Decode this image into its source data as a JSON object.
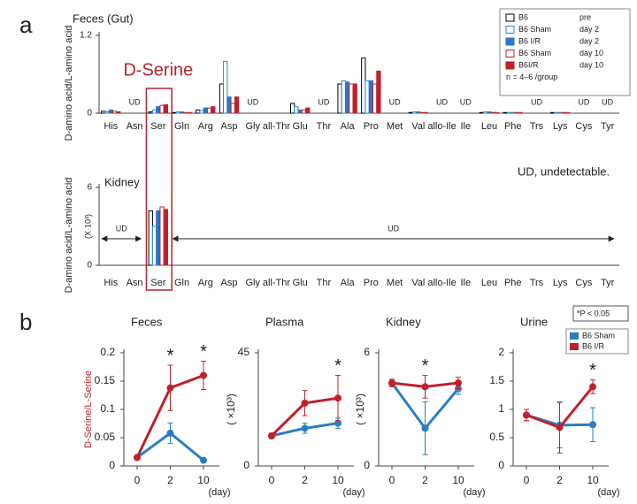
{
  "panel_labels": [
    "a",
    "b"
  ],
  "chart_data": [
    {
      "type": "grouped-bar",
      "title": "Feces (Gut)",
      "ylabel": "D-amino acid/L-amino acid",
      "categories": [
        "His",
        "Asn",
        "Ser",
        "Gln",
        "Arg",
        "Asp",
        "Gly",
        "all-Thr",
        "Glu",
        "Thr",
        "Ala",
        "Pro",
        "Met",
        "Val",
        "allo-Ile",
        "Ile",
        "Leu",
        "Phe",
        "Trs",
        "Lys",
        "Cys",
        "Tyr"
      ],
      "ylim": [
        0,
        1.2
      ],
      "yticks": [
        0,
        1.2
      ],
      "series": [
        {
          "name": "B6",
          "condition": "pre",
          "color": "#000000",
          "fill": "#ffffff",
          "values": [
            0.03,
            null,
            0.02,
            0.01,
            0.05,
            0.45,
            null,
            null,
            0.15,
            null,
            0.45,
            0.85,
            null,
            0.01,
            null,
            null,
            0.01,
            0.01,
            null,
            0.01,
            null,
            null
          ]
        },
        {
          "name": "B6 Sham",
          "condition": "day 2",
          "color": "#2e8bd0",
          "fill": "#ffffff",
          "values": [
            0.02,
            null,
            0.05,
            0.02,
            0.04,
            0.8,
            null,
            null,
            0.1,
            null,
            0.5,
            0.5,
            null,
            0.02,
            null,
            null,
            0.02,
            0.01,
            null,
            0.01,
            null,
            null
          ]
        },
        {
          "name": "B6 I/R",
          "condition": "day 2",
          "color": "#2e75c6",
          "fill": "#2e75c6",
          "values": [
            0.05,
            null,
            0.1,
            0.02,
            0.08,
            0.25,
            null,
            null,
            0.05,
            null,
            0.48,
            0.5,
            null,
            0.02,
            null,
            null,
            0.02,
            0.01,
            null,
            0.01,
            null,
            null
          ]
        },
        {
          "name": "B6 Sham",
          "condition": "day 10",
          "color": "#c0202a",
          "fill": "#ffffff",
          "values": [
            0.03,
            null,
            0.12,
            0.01,
            0.08,
            0.15,
            null,
            null,
            0.05,
            null,
            0.45,
            0.45,
            null,
            0.01,
            null,
            null,
            0.01,
            0.01,
            null,
            0.01,
            null,
            null
          ]
        },
        {
          "name": "B6I/R",
          "condition": "day 10",
          "color": "#c0202a",
          "fill": "#c0202a",
          "values": [
            0.02,
            null,
            0.13,
            0.01,
            0.1,
            0.25,
            null,
            null,
            0.08,
            null,
            0.45,
            0.65,
            null,
            0.01,
            null,
            null,
            0.01,
            0.01,
            null,
            0.01,
            null,
            null
          ]
        }
      ],
      "legend_note": "n = 4–6 /group",
      "highlight": {
        "text": "D-Serine",
        "at": "Ser"
      },
      "annotations": [
        {
          "text": "UD",
          "at": "Asn"
        },
        {
          "text": "UD",
          "at": "Gly"
        },
        {
          "text": "UD",
          "at": "Thr"
        },
        {
          "text": "UD",
          "at": "Met"
        },
        {
          "text": "UD",
          "at": "allo-Ile"
        },
        {
          "text": "UD",
          "at": "Ile"
        },
        {
          "text": "UD",
          "at": "Trs"
        },
        {
          "text": "UD",
          "at": "Cys"
        },
        {
          "text": "UD",
          "at": "Tyr"
        }
      ]
    },
    {
      "type": "grouped-bar",
      "title": "Kidney",
      "ylabel": "D-amino acid/L-amino acid",
      "y_unit": "(X·10³)",
      "categories": [
        "His",
        "Asn",
        "Ser",
        "Gln",
        "Arg",
        "Asp",
        "Gly",
        "all-Thr",
        "Glu",
        "Thr",
        "Ala",
        "Pro",
        "Met",
        "Val",
        "allo-Ile",
        "Ile",
        "Leu",
        "Phe",
        "Trs",
        "Lys",
        "Cys",
        "Tyr"
      ],
      "ylim": [
        0,
        6
      ],
      "yticks": [
        0,
        6
      ],
      "series": [
        {
          "color": "#000000",
          "fill": "#ffffff",
          "values": [
            null,
            null,
            4.2,
            null,
            null,
            null,
            null,
            null,
            null,
            null,
            null,
            null,
            null,
            null,
            null,
            null,
            null,
            null,
            null,
            null,
            null,
            null
          ]
        },
        {
          "color": "#2e8bd0",
          "fill": "#ffffff",
          "values": [
            null,
            null,
            3.0,
            null,
            null,
            null,
            null,
            null,
            null,
            null,
            null,
            null,
            null,
            null,
            null,
            null,
            null,
            null,
            null,
            null,
            null,
            null
          ]
        },
        {
          "color": "#2e75c6",
          "fill": "#2e75c6",
          "values": [
            null,
            null,
            4.2,
            null,
            null,
            null,
            null,
            null,
            null,
            null,
            null,
            null,
            null,
            null,
            null,
            null,
            null,
            null,
            null,
            null,
            null,
            null
          ]
        },
        {
          "color": "#c0202a",
          "fill": "#ffffff",
          "values": [
            null,
            null,
            4.5,
            null,
            null,
            null,
            null,
            null,
            null,
            null,
            null,
            null,
            null,
            null,
            null,
            null,
            null,
            null,
            null,
            null,
            null,
            null
          ]
        },
        {
          "color": "#c0202a",
          "fill": "#c0202a",
          "values": [
            null,
            null,
            4.3,
            null,
            null,
            null,
            null,
            null,
            null,
            null,
            null,
            null,
            null,
            null,
            null,
            null,
            null,
            null,
            null,
            null,
            null,
            null
          ]
        }
      ],
      "footnote": "UD, undetectable.",
      "annotations": [
        {
          "text": "UD",
          "from": "His",
          "to": "Asn"
        },
        {
          "text": "UD",
          "from": "Gln",
          "to": "Tyr"
        }
      ]
    },
    {
      "type": "line",
      "title": "Feces",
      "ylabel": "D-Serine/L-Serine",
      "xlabel": "(day)",
      "categories": [
        "0",
        "2",
        "10"
      ],
      "ylim": [
        0,
        0.2
      ],
      "yticks": [
        0,
        0.05,
        0.1,
        0.15,
        0.2
      ],
      "series": [
        {
          "color": "#2a7dc4",
          "values": [
            0.015,
            0.058,
            0.01
          ],
          "errors": [
            0,
            0.018,
            0
          ]
        },
        {
          "color": "#c0202a",
          "values": [
            0.015,
            0.138,
            0.16
          ],
          "errors": [
            0,
            0.04,
            0.025
          ]
        }
      ],
      "annotations": [
        {
          "text": "*",
          "at": "2"
        },
        {
          "text": "*",
          "at": "10"
        }
      ]
    },
    {
      "type": "line",
      "title": "Plasma",
      "ylabel": "( ×10³)",
      "xlabel": "(day)",
      "categories": [
        "0",
        "2",
        "10"
      ],
      "ylim": [
        0,
        45
      ],
      "yticks": [
        0,
        45
      ],
      "series": [
        {
          "color": "#2a7dc4",
          "values": [
            12,
            15,
            17
          ],
          "errors": [
            1,
            2,
            2
          ]
        },
        {
          "color": "#c0202a",
          "values": [
            12,
            25,
            27
          ],
          "errors": [
            1,
            5,
            9
          ]
        }
      ],
      "annotations": [
        {
          "text": "*",
          "at": "10"
        }
      ]
    },
    {
      "type": "line",
      "title": "Kidney",
      "ylabel": "( ×10³)",
      "xlabel": "(day)",
      "categories": [
        "0",
        "2",
        "10"
      ],
      "ylim": [
        0,
        6
      ],
      "yticks": [
        0,
        6
      ],
      "series": [
        {
          "color": "#2a7dc4",
          "values": [
            4.4,
            2.0,
            4.1
          ],
          "errors": [
            0.1,
            1.4,
            0.3
          ]
        },
        {
          "color": "#c0202a",
          "values": [
            4.4,
            4.2,
            4.4
          ],
          "errors": [
            0.2,
            0.6,
            0.3
          ]
        }
      ],
      "annotations": [
        {
          "text": "*",
          "at": "2"
        }
      ]
    },
    {
      "type": "line",
      "title": "Urine",
      "xlabel": "(day)",
      "categories": [
        "0",
        "2",
        "10"
      ],
      "ylim": [
        0,
        2
      ],
      "yticks": [
        0,
        0.5,
        1,
        1.5,
        2
      ],
      "series": [
        {
          "name": "B6 Sham",
          "color": "#2a7dc4",
          "values": [
            0.9,
            0.72,
            0.73
          ],
          "errors": [
            0.1,
            0.4,
            0.3
          ]
        },
        {
          "name": "B6 I/R",
          "color": "#c0202a",
          "values": [
            0.9,
            0.68,
            1.4
          ],
          "errors": [
            0.1,
            0.45,
            0.12
          ]
        }
      ],
      "note": "*P < 0.05",
      "annotations": [
        {
          "text": "*",
          "at": "10"
        }
      ]
    }
  ]
}
